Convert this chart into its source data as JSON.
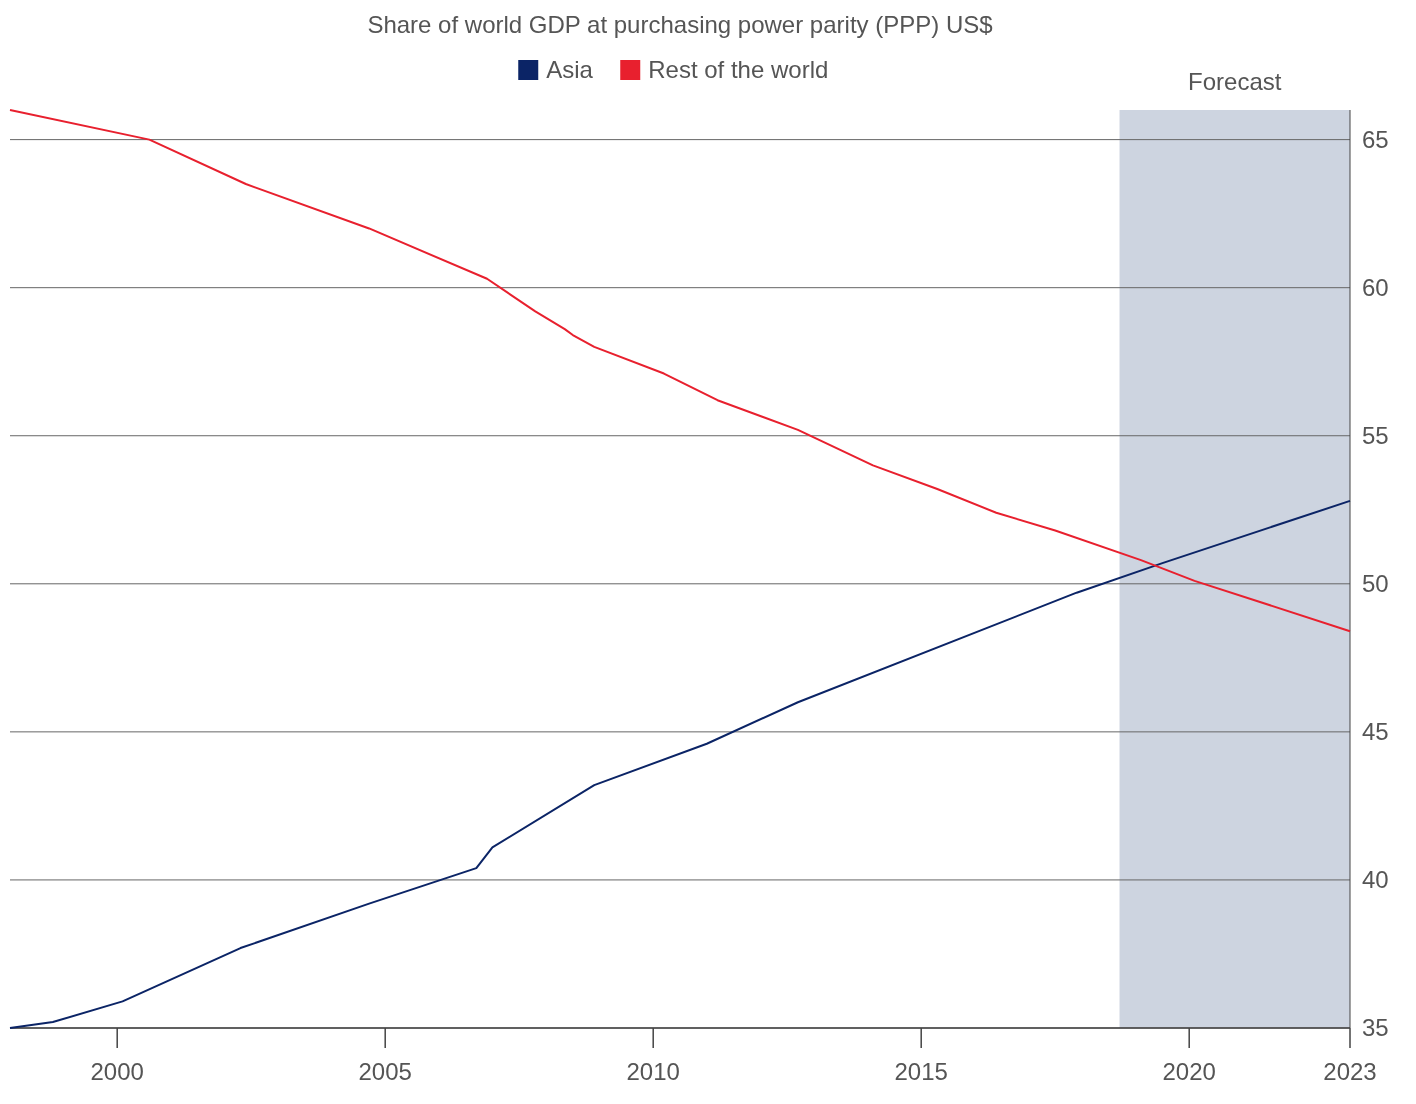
{
  "chart_data": {
    "type": "line",
    "title": "Share of world GDP at purchasing power parity (PPP) US$",
    "xlim": [
      1998,
      2023
    ],
    "xticks": [
      2000,
      2005,
      2010,
      2015,
      2020,
      2023
    ],
    "ylim": [
      35,
      66
    ],
    "yticks": [
      35,
      40,
      45,
      50,
      55,
      60,
      65
    ],
    "grid": "y",
    "legend": "top",
    "bands": [
      {
        "axis": "x",
        "from": 2018.7,
        "to": 2023,
        "label": "Forecast",
        "color": "#cdd4e0"
      }
    ],
    "series": [
      {
        "name": "Asia",
        "color": "#0b2466",
        "x": [
          1998,
          1998.8,
          2000.1,
          2002.3,
          2004.7,
          2006.7,
          2007,
          2008.9,
          2011,
          2012.7,
          2017.9,
          2019.5,
          2023
        ],
        "values": [
          35,
          35.2,
          35.9,
          37.7,
          39.2,
          40.4,
          41.1,
          43.2,
          44.6,
          46,
          49.7,
          50.7,
          52.8
        ]
      },
      {
        "name": "Rest of the world",
        "color": "#e8202e",
        "x": [
          1998,
          2000.6,
          2002.4,
          2004.7,
          2006.9,
          2007.8,
          2008.35,
          2008.5,
          2008.9,
          2010.2,
          2011.2,
          2012.7,
          2014.1,
          2015.3,
          2016.4,
          2017.5,
          2019.1,
          2020.1,
          2023
        ],
        "values": [
          66,
          65,
          63.5,
          62,
          60.3,
          59.2,
          58.6,
          58.4,
          58,
          57.1,
          56.2,
          55.2,
          54,
          53.2,
          52.4,
          51.8,
          50.8,
          50.1,
          48.4
        ]
      }
    ]
  }
}
